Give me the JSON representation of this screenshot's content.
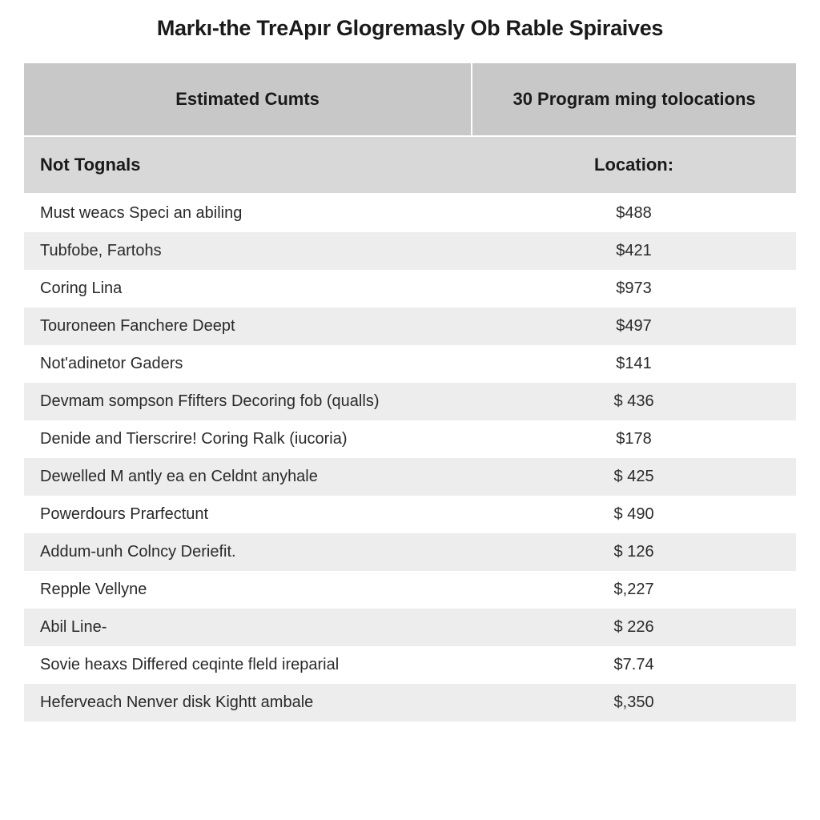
{
  "title": "Markı-the TreApır Glogremasly Ob Rable Spiraives",
  "table": {
    "type": "table",
    "header_bg": "#c8c8c8",
    "subheader_bg": "#d8d8d8",
    "row_odd_bg": "#ffffff",
    "row_even_bg": "#ededed",
    "text_color": "#2a2a2a",
    "header_text_color": "#1a1a1a",
    "title_fontsize": 27,
    "header_fontsize": 22,
    "cell_fontsize": 20,
    "col_widths": [
      "58%",
      "42%"
    ],
    "header": {
      "left": "Estimated Cumts",
      "right": "30 Program ming tolocations"
    },
    "subheader": {
      "left": "Not Tognals",
      "right": "Location:"
    },
    "rows": [
      {
        "label": "Must weacs Speci an abiling",
        "value": "$488"
      },
      {
        "label": "Tubfobe, Fartohs",
        "value": "$421"
      },
      {
        "label": "Coring Lina",
        "value": "$973"
      },
      {
        "label": "Touroneen Fanchere Deept",
        "value": "$497"
      },
      {
        "label": "Not'adinetor Gaders",
        "value": "$141"
      },
      {
        "label": "Devmam sompson Ffifters Decoring fob (qualls)",
        "value": "$ 436"
      },
      {
        "label": "Denide and Tierscrire! Coring Ralk (iucoria)",
        "value": "$178"
      },
      {
        "label": "Dewelled M antly ea en Celdnt anyhale",
        "value": "$ 425"
      },
      {
        "label": "Powerdours Prarfectunt",
        "value": "$ 490"
      },
      {
        "label": "Addum-unh Colncy Deriefit.",
        "value": "$ 126"
      },
      {
        "label": "Repple Vellyne",
        "value": "$,227"
      },
      {
        "label": "Abil Line-",
        "value": "$ 226"
      },
      {
        "label": "Sovie heaxs Differed ceqinte fleld ireparial",
        "value": "$7.74"
      },
      {
        "label": "Heferveach Nenver disk Kightt ambale",
        "value": "$,350"
      }
    ]
  }
}
